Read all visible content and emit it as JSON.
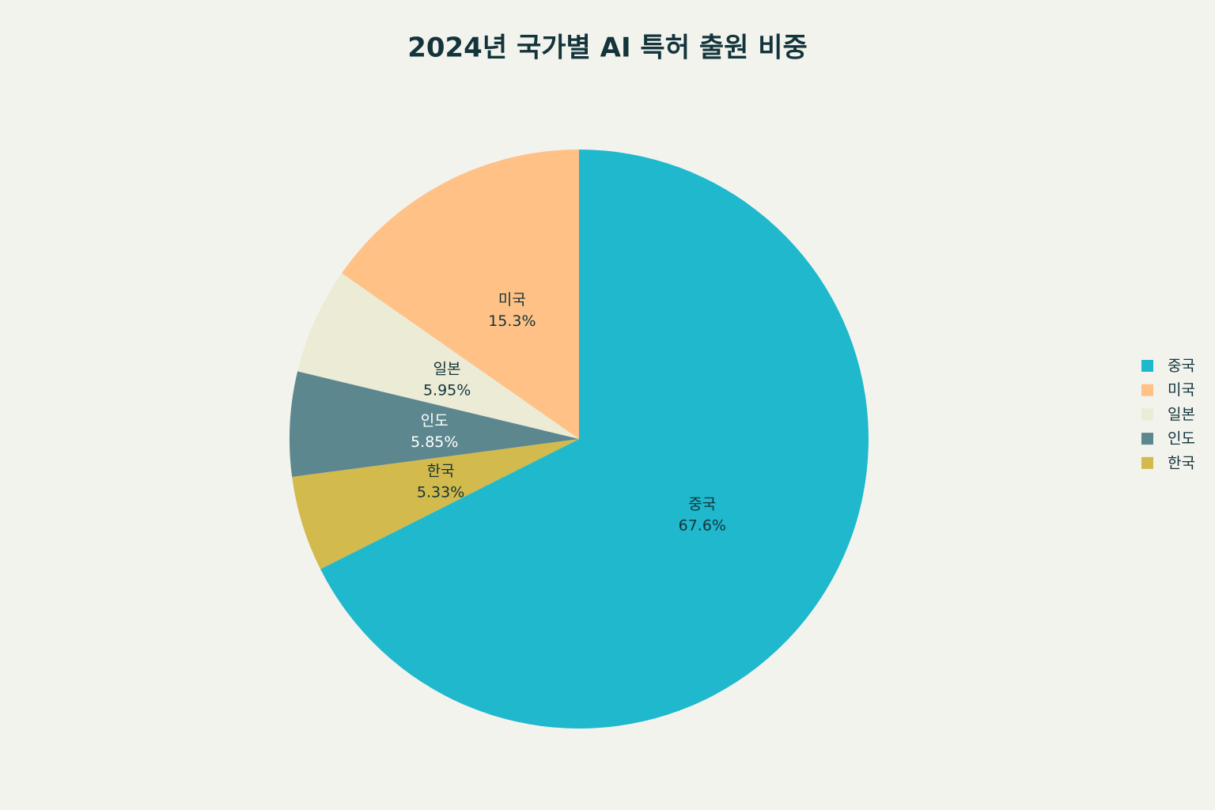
{
  "chart_data": {
    "type": "pie",
    "title": "2024년 국가별 AI 특허 출원 비중",
    "categories": [
      "중국",
      "미국",
      "일본",
      "인도",
      "한국"
    ],
    "values": [
      67.6,
      15.3,
      5.95,
      5.85,
      5.33
    ],
    "value_labels": [
      "67.6%",
      "15.3%",
      "5.95%",
      "5.85%",
      "5.33%"
    ],
    "colors": [
      "#1FB8CD",
      "#FFC185",
      "#ECEBD5",
      "#5D878F",
      "#D2BA4C"
    ],
    "legend": "right"
  }
}
